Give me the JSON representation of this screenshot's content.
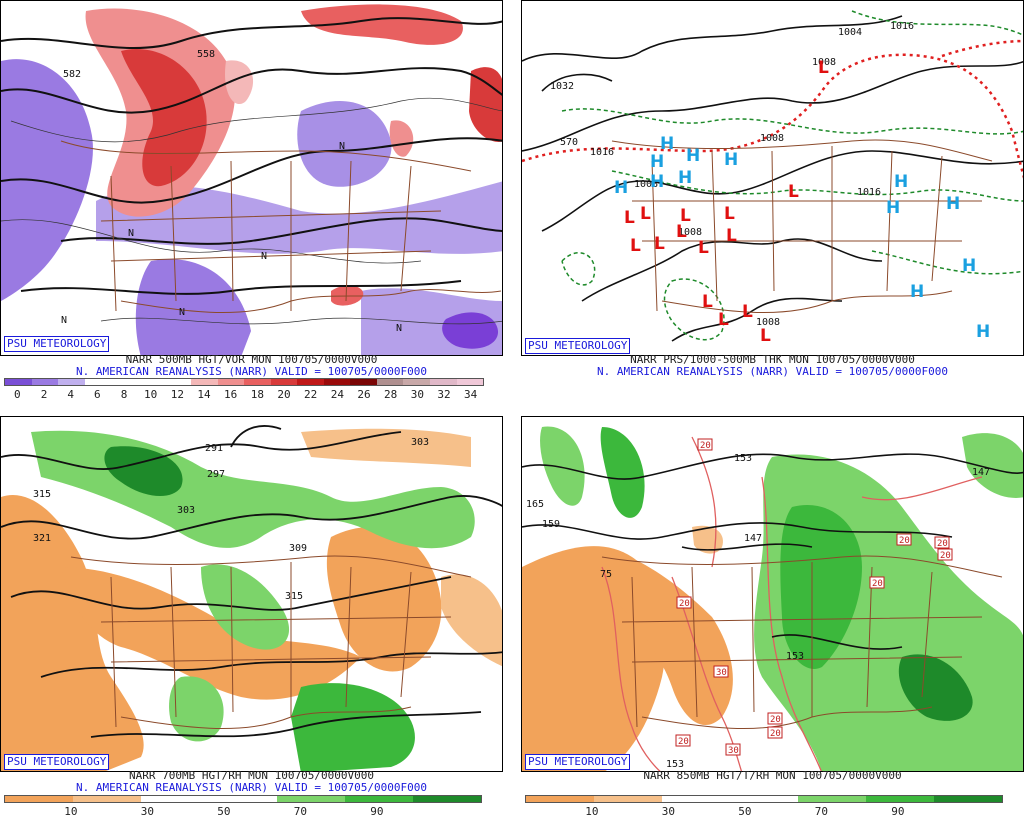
{
  "panels": [
    {
      "tag": "PSU METEOROLOGY",
      "line1": "NARR 500MB HGT/VOR MON 100705/0000V000",
      "line2": "N. AMERICAN REANALYSIS (NARR) VALID = 100705/0000F000",
      "colorbar": {
        "labels": [
          "0",
          "2",
          "4",
          "6",
          "8",
          "10",
          "12",
          "14",
          "16",
          "18",
          "20",
          "22",
          "24",
          "26",
          "28",
          "30",
          "32",
          "34"
        ],
        "colors": [
          "#7a4fd6",
          "#9a7ae2",
          "#c0b0ee",
          "#ffffff",
          "#ffffff",
          "#ffffff",
          "#ffffff",
          "#f4b8b8",
          "#ef8f8f",
          "#e86060",
          "#d83a3a",
          "#c01818",
          "#9a0a0a",
          "#7a0505",
          "#b09090",
          "#c8a8a8",
          "#e0b8c8",
          "#f0c8d8"
        ]
      },
      "contour_labels": [
        "582",
        "558",
        "N",
        "N",
        "N",
        "N",
        "N",
        "N"
      ]
    },
    {
      "tag": "PSU METEOROLOGY",
      "line1": "NARR PRS/1000-500MB THK MON 100705/0000V000",
      "line2": "N. AMERICAN REANALYSIS (NARR) VALID = 100705/0000F000",
      "contour_labels": [
        "1032",
        "1016",
        "1008",
        "1016",
        "1008",
        "1004",
        "1008",
        "1016",
        "570",
        "1008",
        "1008"
      ],
      "highs": [
        "H",
        "H",
        "H",
        "H",
        "H",
        "H",
        "H",
        "H",
        "H",
        "H",
        "H",
        "H",
        "H"
      ],
      "lows": [
        "L",
        "L",
        "L",
        "L",
        "L",
        "L",
        "L",
        "L",
        "L",
        "L",
        "L",
        "L",
        "L",
        "L",
        "L"
      ]
    },
    {
      "tag": "PSU METEOROLOGY",
      "line1": "NARR 700MB HGT/RH MON 100705/0000V000",
      "line2": "N. AMERICAN REANALYSIS (NARR) VALID = 100705/0000F000",
      "colorbar": {
        "labels": [
          "10",
          "30",
          "50",
          "70",
          "90"
        ],
        "colors": [
          "#f2a35a",
          "#f6c08a",
          "#ffffff",
          "#ffffff",
          "#7cd46a",
          "#3cb83c",
          "#1e8a2a"
        ]
      },
      "contour_labels": [
        "291",
        "297",
        "303",
        "315",
        "321",
        "303",
        "309",
        "315"
      ]
    },
    {
      "tag": "PSU METEOROLOGY",
      "line1": "NARR 850MB HGT/T/RH MON 100705/0000V000",
      "line2": "",
      "colorbar": {
        "labels": [
          "10",
          "30",
          "50",
          "70",
          "90"
        ],
        "colors": [
          "#f2a35a",
          "#f6c08a",
          "#ffffff",
          "#ffffff",
          "#7cd46a",
          "#3cb83c",
          "#1e8a2a"
        ]
      },
      "contour_labels": [
        "165",
        "159",
        "147",
        "147",
        "153",
        "153",
        "153",
        "10",
        "75"
      ],
      "temp_boxes": [
        "20",
        "20",
        "20",
        "20",
        "20",
        "20",
        "30",
        "30",
        "20",
        "20",
        "20"
      ]
    }
  ]
}
